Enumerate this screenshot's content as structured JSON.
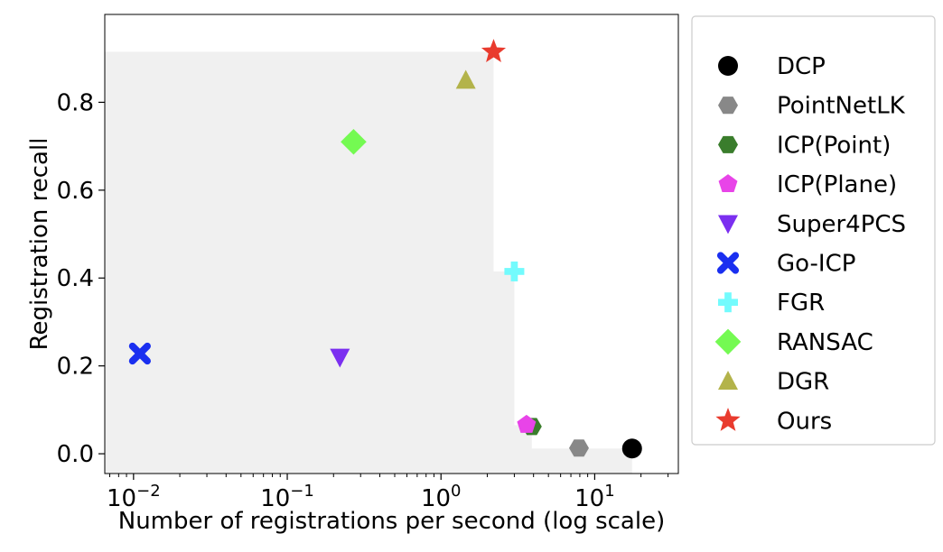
{
  "chart_data": {
    "type": "scatter",
    "xlabel": "Number of registrations per second (log scale)",
    "ylabel": "Registration recall",
    "xscale": "log",
    "xlim": [
      0.0065,
      35
    ],
    "ylim": [
      -0.045,
      1.0
    ],
    "x_ticks": [
      {
        "value": 0.01,
        "base": "10",
        "exp": "−2"
      },
      {
        "value": 0.1,
        "base": "10",
        "exp": "−1"
      },
      {
        "value": 1,
        "base": "10",
        "exp": "0"
      },
      {
        "value": 10,
        "base": "10",
        "exp": "1"
      }
    ],
    "y_ticks": [
      {
        "value": 0.0,
        "label": "0.0"
      },
      {
        "value": 0.2,
        "label": "0.2"
      },
      {
        "value": 0.4,
        "label": "0.4"
      },
      {
        "value": 0.6,
        "label": "0.6"
      },
      {
        "value": 0.8,
        "label": "0.8"
      }
    ],
    "grid": false,
    "legend_position": "outside-right",
    "frontier": {
      "fill": "#f0f0f0",
      "points": [
        [
          2.2,
          0.915
        ],
        [
          3.0,
          0.415
        ],
        [
          3.9,
          0.065
        ],
        [
          17.5,
          0.012
        ]
      ]
    },
    "series": [
      {
        "name": "DCP",
        "marker": "circle",
        "color": "#000000",
        "x": 17.5,
        "y": 0.012
      },
      {
        "name": "PointNetLK",
        "marker": "hexagon",
        "color": "#888888",
        "x": 7.9,
        "y": 0.013
      },
      {
        "name": "ICP(Point)",
        "marker": "hexagon",
        "color": "#3a7d2c",
        "x": 3.9,
        "y": 0.062
      },
      {
        "name": "ICP(Plane)",
        "marker": "pentagon",
        "color": "#e844e8",
        "x": 3.6,
        "y": 0.066
      },
      {
        "name": "Super4PCS",
        "marker": "triangle-down",
        "color": "#7b2ff0",
        "x": 0.22,
        "y": 0.22
      },
      {
        "name": "Go-ICP",
        "marker": "x",
        "color": "#1a2ff0",
        "x": 0.011,
        "y": 0.228
      },
      {
        "name": "FGR",
        "marker": "plus",
        "color": "#73fbfd",
        "x": 3.0,
        "y": 0.415
      },
      {
        "name": "RANSAC",
        "marker": "diamond",
        "color": "#74fa52",
        "x": 0.27,
        "y": 0.71
      },
      {
        "name": "DGR",
        "marker": "triangle-up",
        "color": "#b3b34a",
        "x": 1.45,
        "y": 0.85
      },
      {
        "name": "Ours",
        "marker": "star",
        "color": "#e93b2e",
        "x": 2.2,
        "y": 0.915
      }
    ]
  }
}
